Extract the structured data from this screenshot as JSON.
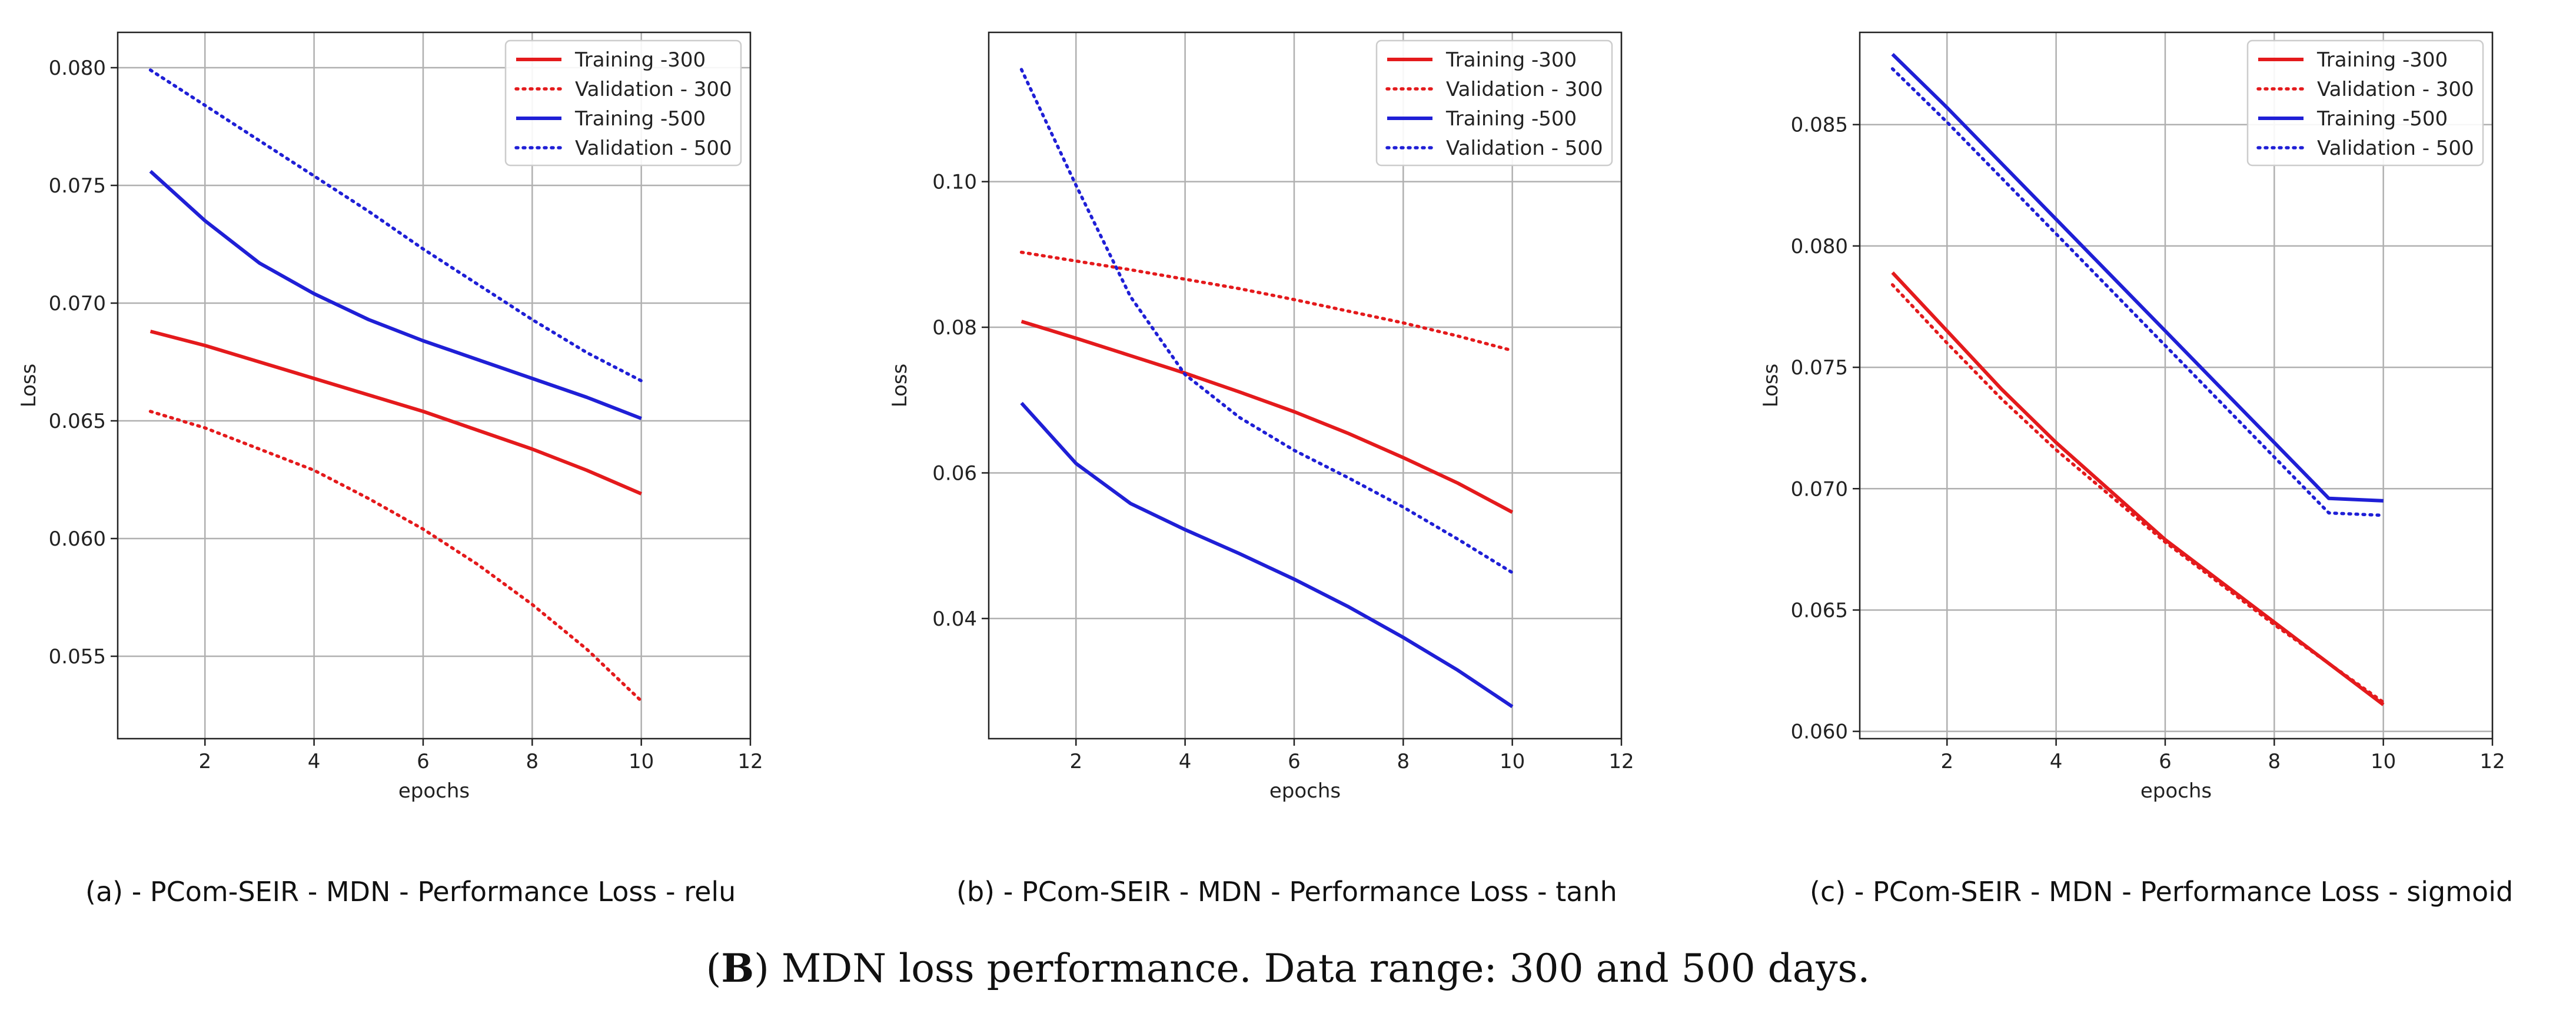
{
  "chart_data": [
    {
      "type": "line",
      "panel_id": "a",
      "caption": "(a)  - PCom-SEIR - MDN - Performance Loss - relu",
      "xlabel": "epochs",
      "ylabel": "Loss",
      "xlim": [
        0.4,
        12
      ],
      "ylim": [
        0.0515,
        0.0815
      ],
      "xticks": [
        2,
        4,
        6,
        8,
        10,
        12
      ],
      "yticks": [
        0.055,
        0.06,
        0.065,
        0.07,
        0.075,
        0.08
      ],
      "ytick_labels": [
        "0.055",
        "0.060",
        "0.065",
        "0.070",
        "0.075",
        "0.080"
      ],
      "grid": true,
      "legend_position": "top-right",
      "x": [
        1,
        2,
        3,
        4,
        5,
        6,
        7,
        8,
        9,
        10
      ],
      "series": [
        {
          "name": "Training -300",
          "color": "#e41a1c",
          "style": "solid",
          "values": [
            0.0688,
            0.0682,
            0.0675,
            0.0668,
            0.0661,
            0.0654,
            0.0646,
            0.0638,
            0.0629,
            0.0619
          ]
        },
        {
          "name": "Validation - 300",
          "color": "#e41a1c",
          "style": "dotted",
          "values": [
            0.0654,
            0.0647,
            0.0638,
            0.0629,
            0.0617,
            0.0604,
            0.0589,
            0.0572,
            0.0553,
            0.0531
          ]
        },
        {
          "name": "Training -500",
          "color": "#1f1fd6",
          "style": "solid",
          "values": [
            0.0756,
            0.0735,
            0.0717,
            0.0704,
            0.0693,
            0.0684,
            0.0676,
            0.0668,
            0.066,
            0.0651
          ]
        },
        {
          "name": "Validation - 500",
          "color": "#1f1fd6",
          "style": "dotted",
          "values": [
            0.0799,
            0.0784,
            0.0769,
            0.0754,
            0.0739,
            0.0723,
            0.0708,
            0.0693,
            0.0679,
            0.0667
          ]
        }
      ]
    },
    {
      "type": "line",
      "panel_id": "b",
      "caption": "(b)  - PCom-SEIR - MDN - Performance Loss - tanh",
      "xlabel": "epochs",
      "ylabel": "Loss",
      "xlim": [
        0.4,
        12
      ],
      "ylim": [
        0.0235,
        0.1205
      ],
      "xticks": [
        2,
        4,
        6,
        8,
        10,
        12
      ],
      "yticks": [
        0.04,
        0.06,
        0.08,
        0.1
      ],
      "ytick_labels": [
        "0.04",
        "0.06",
        "0.08",
        "0.10"
      ],
      "grid": true,
      "legend_position": "top-right",
      "x": [
        1,
        2,
        3,
        4,
        5,
        6,
        7,
        8,
        9,
        10
      ],
      "series": [
        {
          "name": "Training -300",
          "color": "#e41a1c",
          "style": "solid",
          "values": [
            0.0808,
            0.0785,
            0.0761,
            0.0737,
            0.0711,
            0.0684,
            0.0654,
            0.0621,
            0.0586,
            0.0546
          ]
        },
        {
          "name": "Validation - 300",
          "color": "#e41a1c",
          "style": "dotted",
          "values": [
            0.0903,
            0.0891,
            0.0879,
            0.0866,
            0.0853,
            0.0838,
            0.0822,
            0.0806,
            0.0788,
            0.0768
          ]
        },
        {
          "name": "Training -500",
          "color": "#1f1fd6",
          "style": "solid",
          "values": [
            0.0696,
            0.0613,
            0.0558,
            0.0522,
            0.0489,
            0.0454,
            0.0416,
            0.0374,
            0.0329,
            0.0279
          ]
        },
        {
          "name": "Validation - 500",
          "color": "#1f1fd6",
          "style": "dotted",
          "values": [
            0.1154,
            0.0995,
            0.0842,
            0.0735,
            0.0676,
            0.0631,
            0.0593,
            0.0553,
            0.0509,
            0.0463
          ]
        }
      ]
    },
    {
      "type": "line",
      "panel_id": "c",
      "caption": "(c)  - PCom-SEIR - MDN - Performance Loss - sigmoid",
      "xlabel": "epochs",
      "ylabel": "Loss",
      "xlim": [
        0.4,
        12
      ],
      "ylim": [
        0.0597,
        0.0888
      ],
      "xticks": [
        2,
        4,
        6,
        8,
        10,
        12
      ],
      "yticks": [
        0.06,
        0.065,
        0.07,
        0.075,
        0.08,
        0.085
      ],
      "ytick_labels": [
        "0.060",
        "0.065",
        "0.070",
        "0.075",
        "0.080",
        "0.085"
      ],
      "grid": true,
      "legend_position": "top-right",
      "x": [
        1,
        2,
        3,
        4,
        5,
        6,
        7,
        8,
        9,
        10
      ],
      "series": [
        {
          "name": "Training -300",
          "color": "#e41a1c",
          "style": "solid",
          "values": [
            0.0789,
            0.0765,
            0.0741,
            0.0719,
            0.0699,
            0.0679,
            0.0662,
            0.0645,
            0.0628,
            0.0611
          ]
        },
        {
          "name": "Validation - 300",
          "color": "#e41a1c",
          "style": "dotted",
          "values": [
            0.0784,
            0.076,
            0.0737,
            0.0716,
            0.0697,
            0.0678,
            0.0661,
            0.0644,
            0.0628,
            0.0612
          ]
        },
        {
          "name": "Training -500",
          "color": "#1f1fd6",
          "style": "solid",
          "values": [
            0.0879,
            0.0857,
            0.0834,
            0.0811,
            0.0788,
            0.0765,
            0.0742,
            0.0719,
            0.0696,
            0.0695
          ]
        },
        {
          "name": "Validation - 500",
          "color": "#1f1fd6",
          "style": "dotted",
          "values": [
            0.0873,
            0.0851,
            0.0828,
            0.0805,
            0.0782,
            0.0759,
            0.0736,
            0.0713,
            0.069,
            0.0689
          ]
        }
      ]
    }
  ],
  "figure_caption": {
    "label": "B",
    "open": "(",
    "close": ")",
    "text": " MDN loss performance. Data range: 300 and 500 days."
  }
}
